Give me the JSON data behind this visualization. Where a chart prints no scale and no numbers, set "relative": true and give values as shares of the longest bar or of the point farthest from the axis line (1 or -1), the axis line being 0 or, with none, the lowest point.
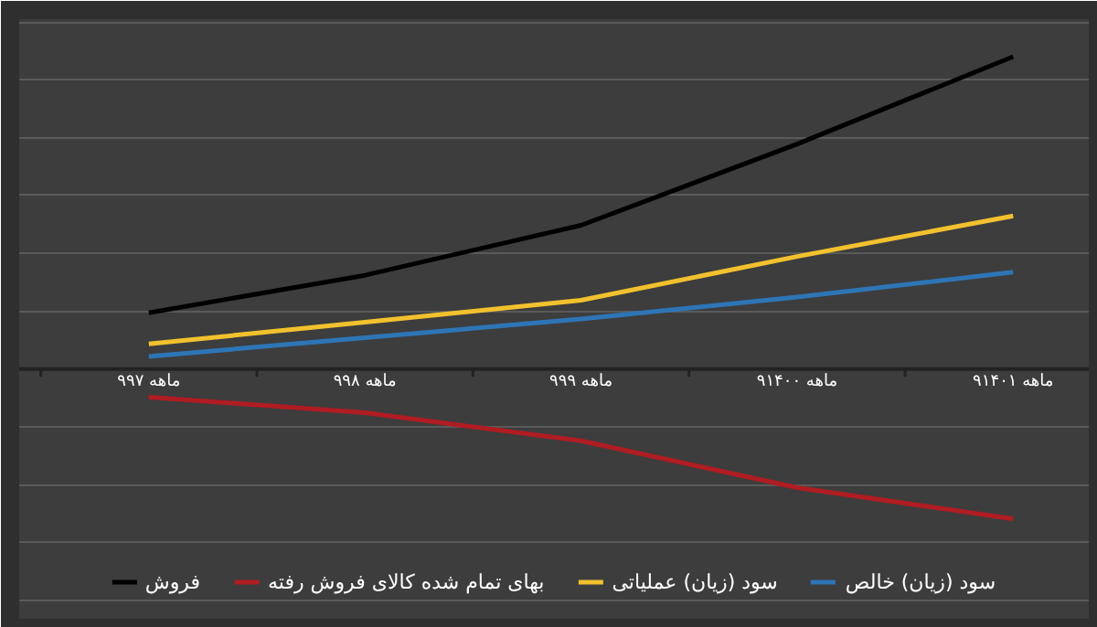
{
  "chart_data": {
    "type": "line",
    "relative": true,
    "categories": [
      "۹ماهه ۹۷",
      "۹ماهه ۹۸",
      "۹ماهه ۹۹",
      "۹ماهه ۱۴۰۰",
      "۹ماهه ۱۴۰۱"
    ],
    "series": [
      {
        "name": "فروش",
        "color": "#000000",
        "values": [
          0.18,
          0.3,
          0.46,
          0.72,
          1
        ]
      },
      {
        "name": "بهای تمام شده کالای فروش رفته",
        "color": "#b01c22",
        "values": [
          -0.09,
          -0.14,
          -0.23,
          -0.38,
          -0.48
        ]
      },
      {
        "name": "سود (زیان) عملیاتی",
        "color": "#f2c12e",
        "values": [
          0.08,
          0.15,
          0.22,
          0.36,
          0.49
        ]
      },
      {
        "name": "سود (زیان) خالص",
        "color": "#2e75b6",
        "values": [
          0.04,
          0.1,
          0.16,
          0.23,
          0.31
        ]
      }
    ],
    "grid": "y",
    "legend": "bottom"
  }
}
